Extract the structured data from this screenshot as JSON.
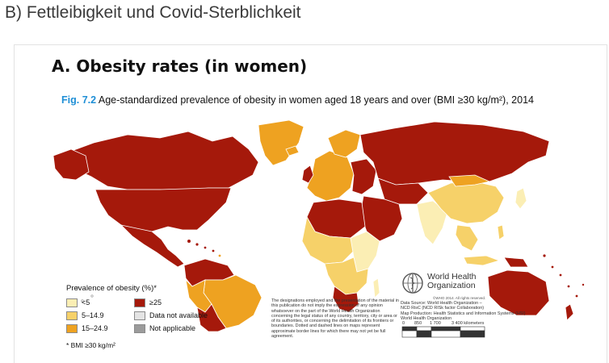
{
  "page": {
    "heading": "B) Fettleibigkeit und Covid-Sterblichkeit"
  },
  "figure": {
    "section_title": "A. Obesity rates (in women)",
    "fig_number": "Fig. 7.2",
    "caption": "Age-standardized prevalence of obesity in women aged 18 years and over (BMI ≥30 kg/m²), 2014"
  },
  "legend": {
    "title": "Prevalence of obesity (%)*",
    "items": [
      {
        "label": "<5",
        "color": "#fbeeb4"
      },
      {
        "label": "≥25",
        "color": "#a5190b"
      },
      {
        "label": "5–14.9",
        "color": "#f6d169"
      },
      {
        "label": "Data not available",
        "color": "#e4e4e4"
      },
      {
        "label": "15–24.9",
        "color": "#eea221"
      },
      {
        "label": "Not applicable",
        "color": "#9b9b9b"
      }
    ],
    "note": "* BMI ≥30 kg/m²"
  },
  "disclaimer": "The designations employed and the presentation of the material in this publication do not imply the expression of any opinion whatsoever on the part of the World Health Organization concerning the legal status of any country, territory, city or area or of its authorities, or concerning the delimitation of its frontiers or boundaries. Dotted and dashed lines on maps represent approximate border lines for which there may not yet be full agreement.",
  "who": {
    "name_line1": "World Health",
    "name_line2": "Organization",
    "copyright": "©WHO 2014. All rights reserved.",
    "source_lines": [
      "Data Source: World Health Organization –",
      "NCD RisC (NCD RISk factor Collaboration)",
      "Map Production: Health Statistics and Information Systems (HSI)",
      "World Health Organization"
    ]
  },
  "scale_bar": {
    "labels": [
      "0",
      "850",
      "1 700",
      "3 400 kilometers"
    ]
  },
  "map": {
    "ocean_color": "#ffffff",
    "border_color": "#ffffff",
    "regions": [
      {
        "name": "Canada",
        "level": "15–24.9"
      },
      {
        "name": "Greenland",
        "level": "Not applicable"
      },
      {
        "name": "United States",
        "level": "≥25"
      },
      {
        "name": "Mexico",
        "level": "≥25"
      },
      {
        "name": "Brazil",
        "level": "15–24.9"
      },
      {
        "name": "Argentina",
        "level": "≥25"
      },
      {
        "name": "Western Europe",
        "level": "15–24.9"
      },
      {
        "name": "Russia",
        "level": "≥25"
      },
      {
        "name": "North Africa",
        "level": "≥25"
      },
      {
        "name": "Middle East",
        "level": "≥25"
      },
      {
        "name": "Sub-Saharan Africa",
        "level": "5–14.9"
      },
      {
        "name": "South Africa",
        "level": "≥25"
      },
      {
        "name": "China",
        "level": "5–14.9"
      },
      {
        "name": "India",
        "level": "<5"
      },
      {
        "name": "Australia",
        "level": "≥25"
      }
    ]
  }
}
